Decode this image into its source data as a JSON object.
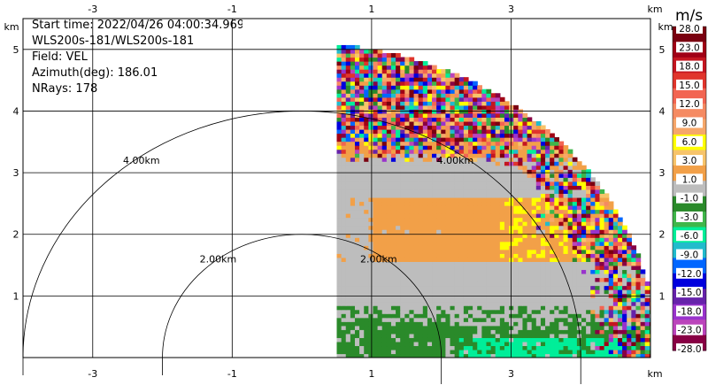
{
  "info": {
    "start_time": "Start time: 2022/04/26 04:00:34.969",
    "instrument": "WLS200s-181/WLS200s-181",
    "field": "Field: VEL",
    "azimuth": "Azimuth(deg): 186.01",
    "nrays": "NRays: 178"
  },
  "colorbar": {
    "unit": "m/s",
    "labels": [
      "28.0",
      "23.0",
      "18.0",
      "15.0",
      "12.0",
      "9.0",
      "6.0",
      "3.0",
      "1.0",
      "-1.0",
      "-3.0",
      "-6.0",
      "-9.0",
      "-12.0",
      "-15.0",
      "-18.0",
      "-23.0",
      "-28.0"
    ],
    "colors": [
      "#7a0010",
      "#a00015",
      "#c41620",
      "#e0352c",
      "#f26552",
      "#f58a62",
      "#f6a76a",
      "#ffff00",
      "#f7c46a",
      "#f2a048",
      "#bdbdbd",
      "#2a8a2a",
      "#3fb64a",
      "#00ee99",
      "#22bbcc",
      "#0066ff",
      "#0000dd",
      "#6622aa",
      "#9933cc",
      "#bb44bb",
      "#880044"
    ]
  },
  "chart_data": {
    "type": "heatmap",
    "title": "",
    "xlabel": "km",
    "ylabel": "km",
    "xlim": [
      -4.0,
      5.0
    ],
    "ylim": [
      0.0,
      5.5
    ],
    "x_ticks": [
      -3,
      -1,
      1,
      3
    ],
    "y_ticks": [
      1,
      2,
      3,
      4,
      5
    ],
    "grid": true,
    "range_rings": [
      {
        "radius_km": 2.0,
        "label": "2.00km"
      },
      {
        "radius_km": 4.0,
        "label": "4.00km"
      }
    ],
    "sector": {
      "x_min_km": 0.5,
      "max_range_km": 5.1
    },
    "bands": [
      {
        "y_range": [
          0.0,
          0.8
        ],
        "value": -3.0,
        "note": "near-surface green"
      },
      {
        "y_range": [
          0.8,
          1.7
        ],
        "value": -1.0
      },
      {
        "y_range": [
          1.6,
          2.5
        ],
        "value": 1.0
      },
      {
        "y_range": [
          2.5,
          3.2
        ],
        "value": -1.0
      },
      {
        "y_range": [
          3.2,
          5.1
        ],
        "value": "noise"
      }
    ]
  }
}
